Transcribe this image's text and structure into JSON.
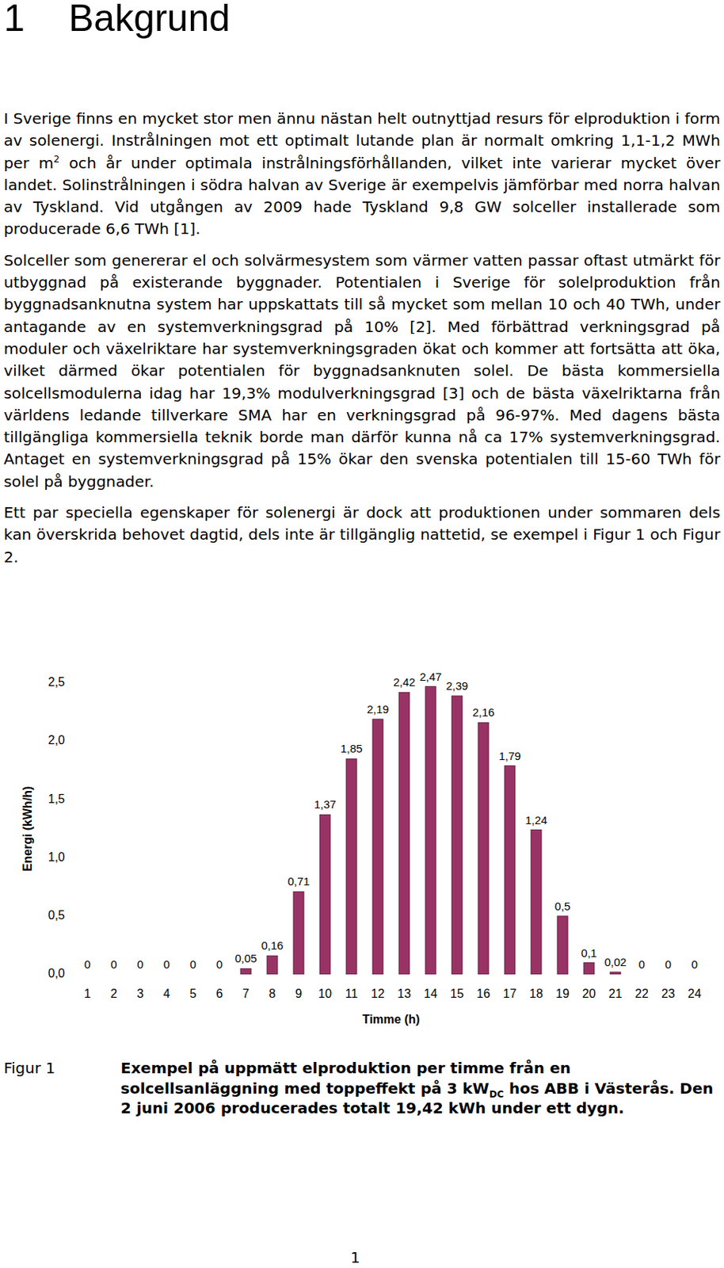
{
  "heading": {
    "number": "1",
    "title": "Bakgrund"
  },
  "paragraphs": [
    [
      {
        "text": "I Sverige finns en mycket stor men ännu nästan helt outnyttjad resurs för elproduktion i form av solenergi. Instrålningen mot ett optimalt lutande plan är normalt omkring 1,1-1,2 MWh per m"
      },
      {
        "sup": "2"
      },
      {
        "text": " och år under optimala instrålningsförhållanden, vilket inte varierar mycket över landet. Solinstrålningen i södra halvan av Sverige är exempelvis jämförbar med norra halvan av Tyskland. Vid utgången av 2009 hade Tyskland 9,8 GW solceller installerade som producerade 6,6 TWh [1]."
      }
    ],
    [
      {
        "text": "Solceller som genererar el och solvärmesystem som värmer vatten passar oftast utmärkt för utbyggnad på existerande byggnader. Potentialen i Sverige för solelproduktion från byggnadsanknutna system har uppskattats till så mycket som mellan 10 och 40 TWh, under antagande av en systemverkningsgrad på 10% [2]. Med förbättrad verkningsgrad på moduler och växelriktare har systemverkningsgraden ökat och kommer att fortsätta att öka, vilket därmed ökar potentialen för byggnadsanknuten solel. De bästa kommersiella solcellsmodulerna idag har 19,3% modulverkningsgrad [3] och de bästa växelriktarna från världens ledande tillverkare SMA har en verkningsgrad på 96-97%. Med dagens bästa tillgängliga kommersiella teknik borde man därför kunna nå ca 17% systemverkningsgrad. Antaget en systemverkningsgrad på 15% ökar den svenska potentialen till 15-60 TWh för solel på byggnader."
      }
    ],
    [
      {
        "text": "Ett par speciella egenskaper för solenergi är dock att produktionen under sommaren dels kan överskrida behovet dagtid, dels inte är tillgänglig nattetid, se exempel i Figur 1 och Figur 2."
      }
    ]
  ],
  "chart_data": {
    "type": "bar",
    "xlabel": "Timme (h)",
    "ylabel": "Energi (kWh/h)",
    "categories": [
      1,
      2,
      3,
      4,
      5,
      6,
      7,
      8,
      9,
      10,
      11,
      12,
      13,
      14,
      15,
      16,
      17,
      18,
      19,
      20,
      21,
      22,
      23,
      24
    ],
    "values": [
      0,
      0,
      0,
      0,
      0,
      0,
      0.05,
      0.16,
      0.71,
      1.37,
      1.85,
      2.19,
      2.42,
      2.47,
      2.39,
      2.16,
      1.79,
      1.24,
      0.5,
      0.1,
      0.02,
      0,
      0,
      0
    ],
    "value_labels": [
      "0",
      "0",
      "0",
      "0",
      "0",
      "0",
      "0,05",
      "0,16",
      "0,71",
      "1,37",
      "1,85",
      "2,19",
      "2,42",
      "2,47",
      "2,39",
      "2,16",
      "1,79",
      "1,24",
      "0,5",
      "0,1",
      "0,02",
      "0",
      "0",
      "0"
    ],
    "color": "#993366",
    "ylim": [
      0,
      2.5
    ],
    "yticks": [
      {
        "value": 0,
        "label": "0,0"
      },
      {
        "value": 0.5,
        "label": "0,5"
      },
      {
        "value": 1,
        "label": "1,0"
      },
      {
        "value": 1.5,
        "label": "1,5"
      },
      {
        "value": 2,
        "label": "2,0"
      },
      {
        "value": 2.5,
        "label": "2,5"
      }
    ],
    "grid": false,
    "data_labels": true
  },
  "caption": {
    "label": "Figur 1",
    "text": [
      {
        "text": "Exempel på uppmätt elproduktion per timme från en solcellsanläggning med toppeffekt på 3 kW"
      },
      {
        "sub": "DC"
      },
      {
        "text": " hos ABB i Västerås. Den 2 juni 2006 producerades totalt 19,42 kWh under ett dygn."
      }
    ]
  },
  "page_number": "1"
}
